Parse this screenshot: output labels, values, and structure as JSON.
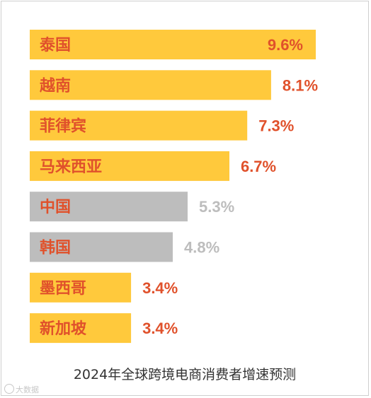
{
  "chart_data": {
    "type": "bar",
    "orientation": "horizontal",
    "title": "2024年全球跨境电商消费者增速预测",
    "categories": [
      "泰国",
      "越南",
      "菲律宾",
      "马来西亚",
      "中国",
      "韩国",
      "墨西哥",
      "新加坡"
    ],
    "values": [
      9.6,
      8.1,
      7.3,
      6.7,
      5.3,
      4.8,
      3.4,
      3.4
    ],
    "value_labels": [
      "9.6%",
      "8.1%",
      "7.3%",
      "6.7%",
      "5.3%",
      "4.8%",
      "3.4%",
      "3.4%"
    ],
    "highlight": [
      true,
      true,
      true,
      true,
      false,
      false,
      true,
      true
    ],
    "xlim": [
      0,
      9.6
    ],
    "grid": false,
    "legend": "none"
  },
  "colors": {
    "highlight_bar": "#FFC93C",
    "highlight_text": "#E0512B",
    "neutral_bar": "#BDBDBD",
    "neutral_text": "#BDBDBD",
    "bar_label": "#E0512B"
  },
  "watermark": {
    "icon": "weibo-icon",
    "text": "大数据"
  }
}
